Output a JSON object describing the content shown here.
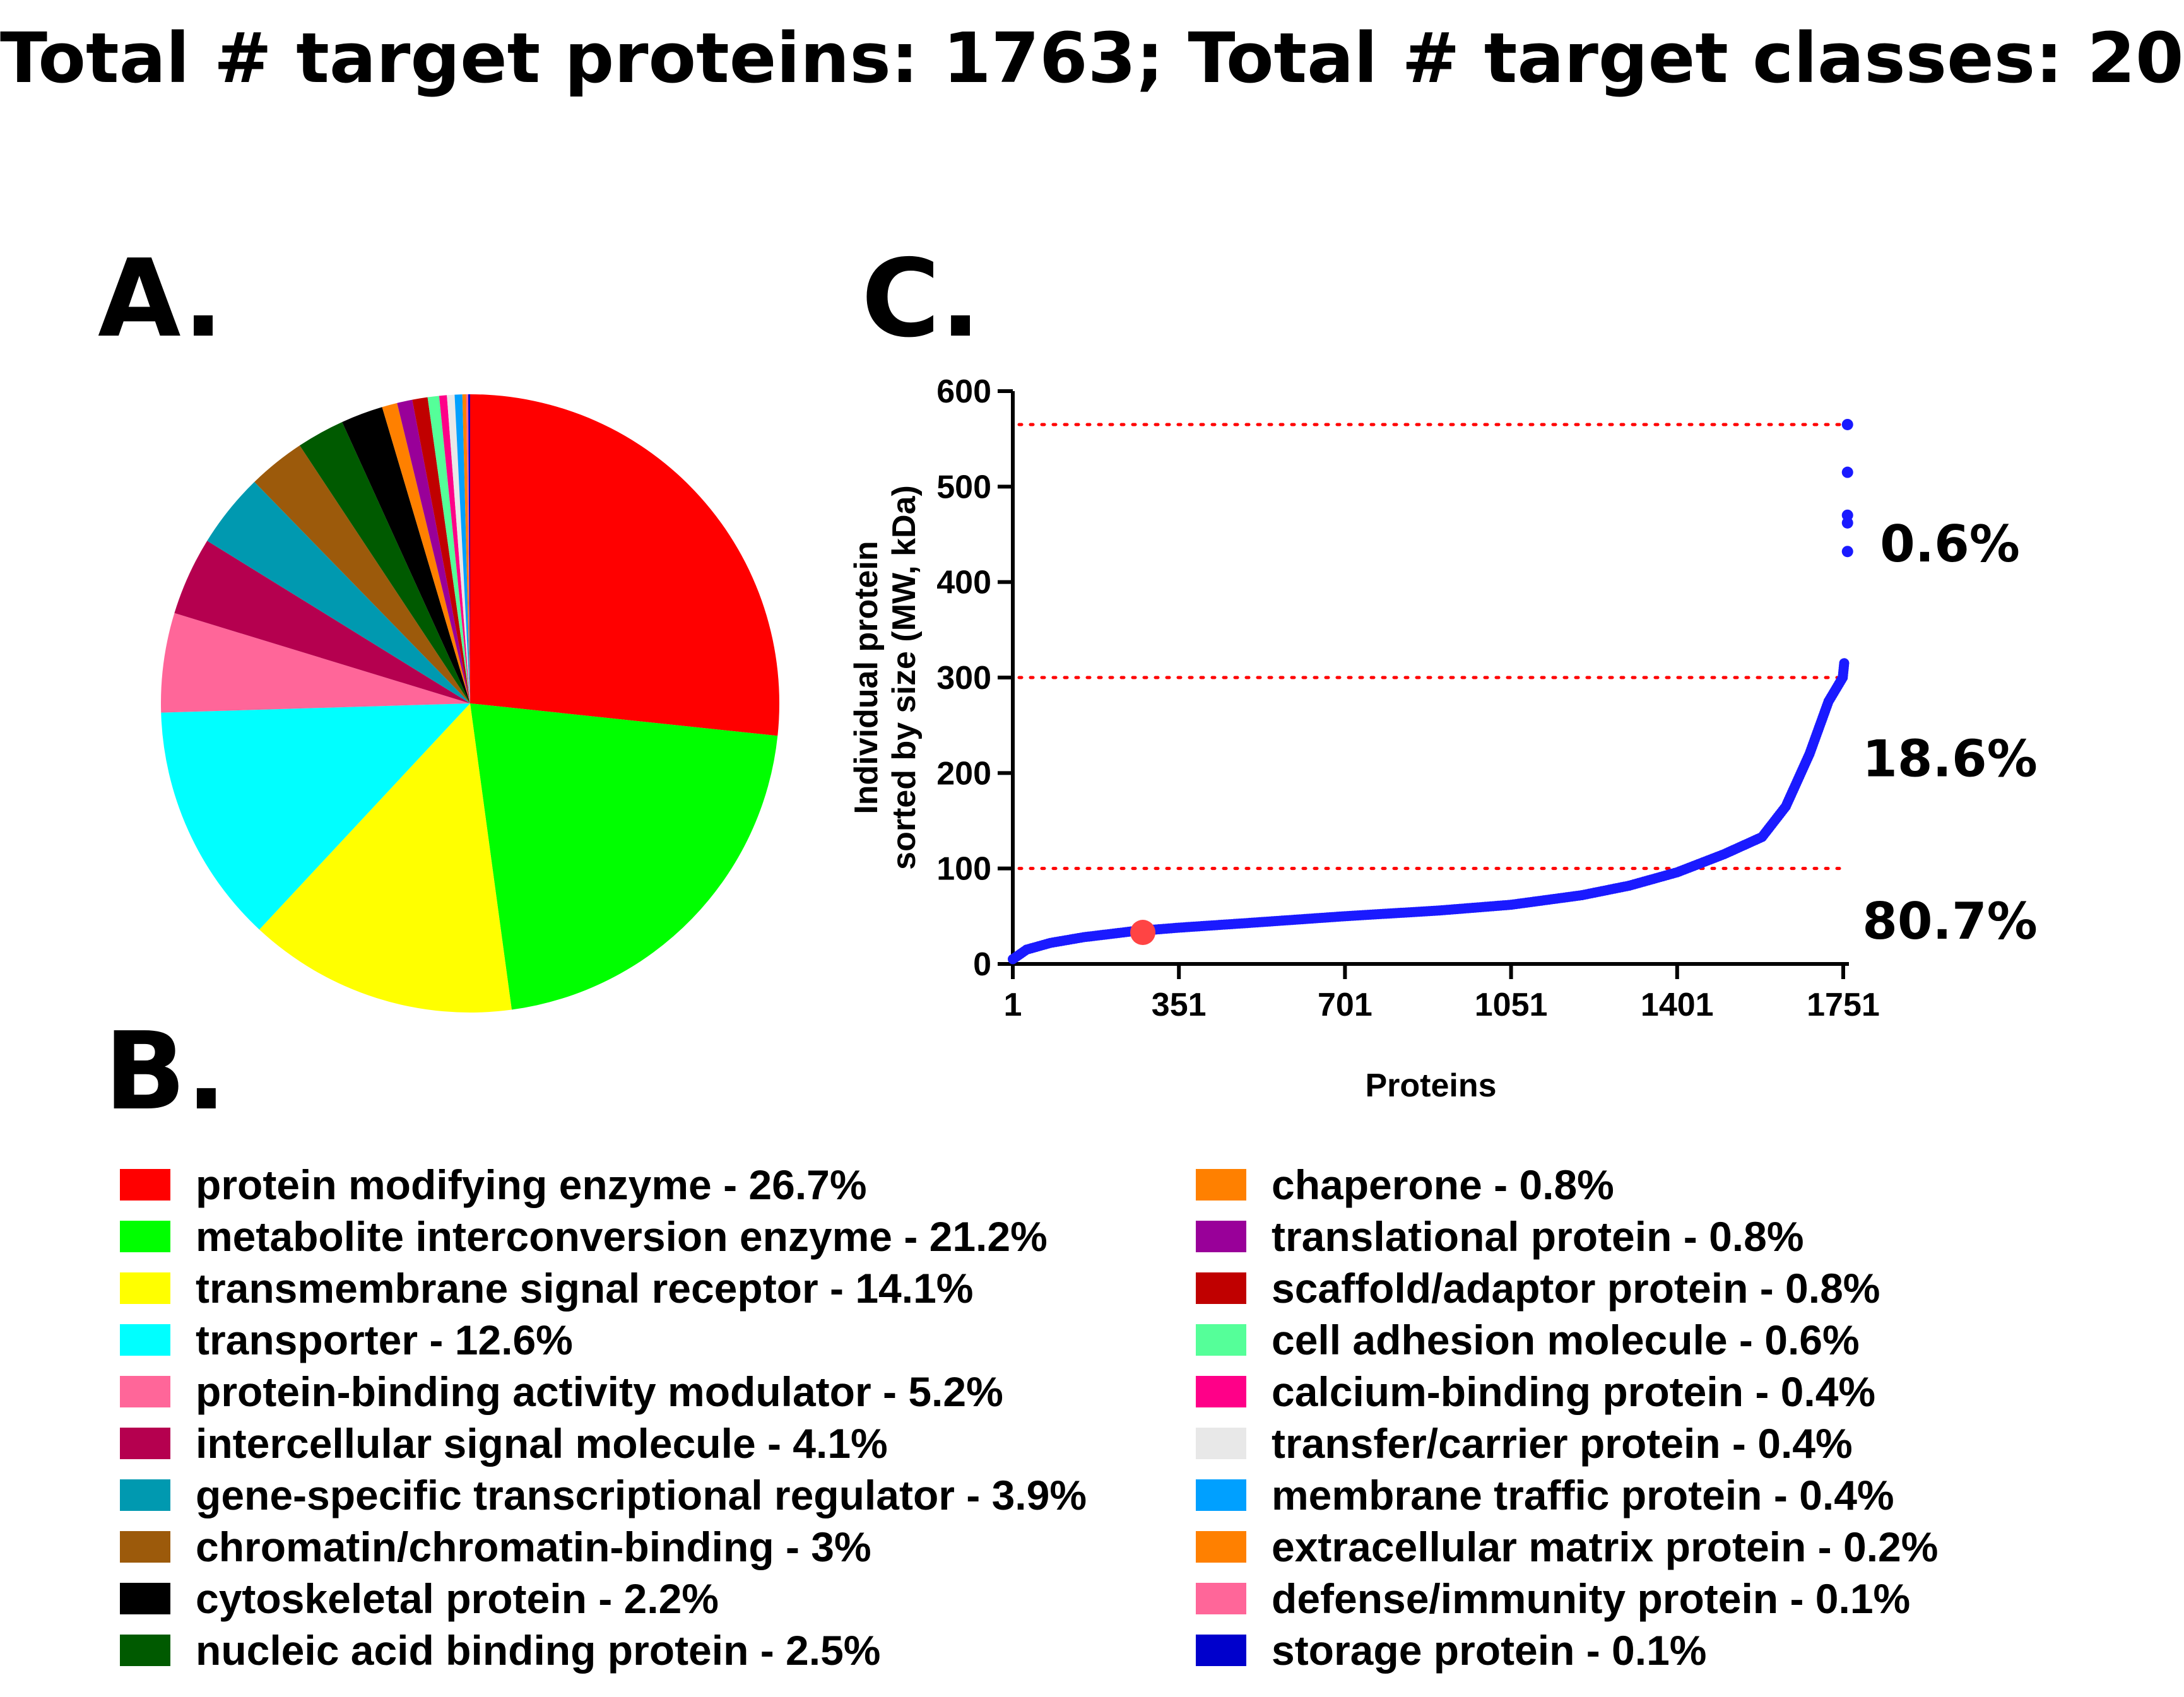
{
  "header": {
    "title": "Total  # target proteins: 1763; Total  # target classes: 20"
  },
  "panels": {
    "a": "A.",
    "b": "B.",
    "c": "C."
  },
  "chart_data": [
    {
      "type": "pie",
      "panel": "A",
      "slices": [
        {
          "label": "protein modifying enzyme - 26.7%",
          "value": 26.7,
          "color": "#ff0000"
        },
        {
          "label": "metabolite interconversion enzyme - 21.2%",
          "value": 21.2,
          "color": "#00ff00"
        },
        {
          "label": "transmembrane signal receptor - 14.1%",
          "value": 14.1,
          "color": "#ffff00"
        },
        {
          "label": "transporter - 12.6%",
          "value": 12.6,
          "color": "#00ffff"
        },
        {
          "label": "protein-binding activity modulator - 5.2%",
          "value": 5.2,
          "color": "#ff6699"
        },
        {
          "label": "intercellular signal molecule - 4.1%",
          "value": 4.1,
          "color": "#b5004f"
        },
        {
          "label": "gene-specific transcriptional regulator - 3.9%",
          "value": 3.9,
          "color": "#0099b0"
        },
        {
          "label": "chromatin/chromatin-binding - 3%",
          "value": 3,
          "color": "#9c5a0b"
        },
        {
          "label": "nucleic acid binding protein - 2.5%",
          "value": 2.5,
          "color": "#005a00"
        },
        {
          "label": "cytoskeletal protein - 2.2%",
          "value": 2.2,
          "color": "#000000"
        },
        {
          "label": "chaperone - 0.8%",
          "value": 0.8,
          "color": "#ff8000"
        },
        {
          "label": "translational protein - 0.8%",
          "value": 0.8,
          "color": "#990099"
        },
        {
          "label": "scaffold/adaptor protein - 0.8%",
          "value": 0.8,
          "color": "#c00000"
        },
        {
          "label": "cell adhesion molecule - 0.6%",
          "value": 0.6,
          "color": "#55ff99"
        },
        {
          "label": "calcium-binding protein - 0.4%",
          "value": 0.4,
          "color": "#ff0088"
        },
        {
          "label": "transfer/carrier protein - 0.4%",
          "value": 0.4,
          "color": "#e8e8e8"
        },
        {
          "label": "membrane traffic protein - 0.4%",
          "value": 0.4,
          "color": "#00a0ff"
        },
        {
          "label": "extracellular matrix protein - 0.2%",
          "value": 0.2,
          "color": "#ff8000"
        },
        {
          "label": "defense/immunity protein - 0.1%",
          "value": 0.1,
          "color": "#ff6699"
        },
        {
          "label": "storage protein - 0.1%",
          "value": 0.1,
          "color": "#0000cc"
        }
      ]
    },
    {
      "type": "scatter",
      "panel": "C",
      "xlabel": "Proteins",
      "ylabel_line1": "Individual protein",
      "ylabel_line2": "sorted by size (MW, kDa)",
      "xlim": [
        1,
        1763
      ],
      "ylim": [
        0,
        600
      ],
      "xticks": [
        1,
        351,
        701,
        1051,
        1401,
        1751
      ],
      "yticks": [
        0,
        100,
        200,
        300,
        400,
        500,
        600
      ],
      "point_color": "#1a1aff",
      "curve_control_points": [
        [
          1,
          5
        ],
        [
          30,
          15
        ],
        [
          80,
          22
        ],
        [
          150,
          28
        ],
        [
          250,
          34
        ],
        [
          351,
          38
        ],
        [
          500,
          43
        ],
        [
          701,
          50
        ],
        [
          900,
          56
        ],
        [
          1051,
          62
        ],
        [
          1200,
          72
        ],
        [
          1300,
          82
        ],
        [
          1401,
          96
        ],
        [
          1500,
          115
        ],
        [
          1580,
          133
        ],
        [
          1630,
          165
        ],
        [
          1680,
          220
        ],
        [
          1720,
          275
        ],
        [
          1750,
          300
        ],
        [
          1753,
          315
        ]
      ],
      "outliers": [
        [
          1760,
          565
        ],
        [
          1760,
          515
        ],
        [
          1760,
          470
        ],
        [
          1760,
          462
        ],
        [
          1760,
          432
        ]
      ],
      "highlight_point": {
        "x": 275,
        "y": 33,
        "color": "#ff4444"
      },
      "threshold_lines": [
        {
          "y": 565,
          "color": "#ff0000"
        },
        {
          "y": 300,
          "color": "#ff0000"
        },
        {
          "y": 100,
          "color": "#ff0000"
        }
      ],
      "annotations": [
        {
          "text": "0.6%",
          "y": 440
        },
        {
          "text": "18.6%",
          "y": 215
        },
        {
          "text": "80.7%",
          "y": 45
        }
      ]
    }
  ]
}
